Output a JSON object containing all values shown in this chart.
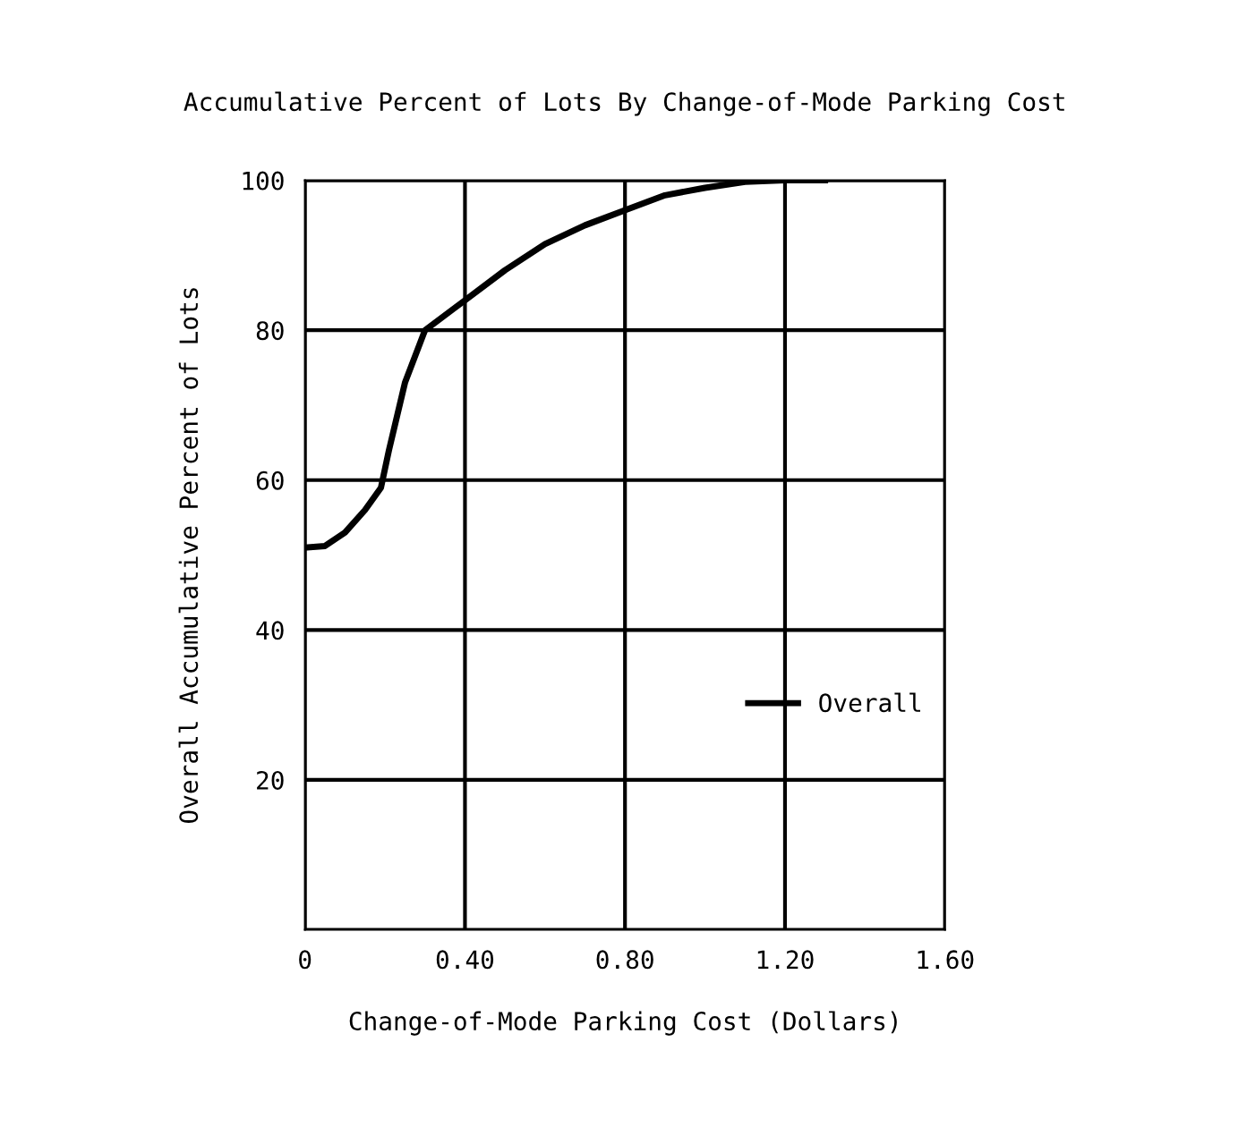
{
  "chart_data": {
    "type": "line",
    "title": "Accumulative Percent of Lots By Change-of-Mode Parking Cost",
    "xlabel": "Change-of-Mode Parking Cost (Dollars)",
    "ylabel": "Overall Accumulative Percent of Lots",
    "x": [
      0,
      0.05,
      0.1,
      0.15,
      0.19,
      0.21,
      0.25,
      0.3,
      0.4,
      0.5,
      0.6,
      0.7,
      0.8,
      0.9,
      1.0,
      1.1,
      1.2,
      1.3
    ],
    "series": [
      {
        "name": "Overall",
        "color": "#000000",
        "values": [
          51,
          51.2,
          53,
          56,
          59,
          64,
          73,
          80,
          84,
          88,
          91.5,
          94,
          96,
          98,
          99,
          99.8,
          100,
          100
        ]
      }
    ],
    "xlim": [
      0,
      1.6
    ],
    "xticks": [
      0,
      {
        "value": 0.4,
        "label": "0.40"
      },
      {
        "value": 0.8,
        "label": "0.80"
      },
      {
        "value": 1.2,
        "label": "1.20"
      },
      {
        "value": 1.6,
        "label": "1.60"
      }
    ],
    "ylim": [
      0,
      100
    ],
    "yticks": [
      {
        "value": 0,
        "label": null
      },
      20,
      40,
      60,
      80,
      100
    ],
    "grid": true,
    "legend": "right",
    "marker": "none",
    "line_style": "solid"
  }
}
